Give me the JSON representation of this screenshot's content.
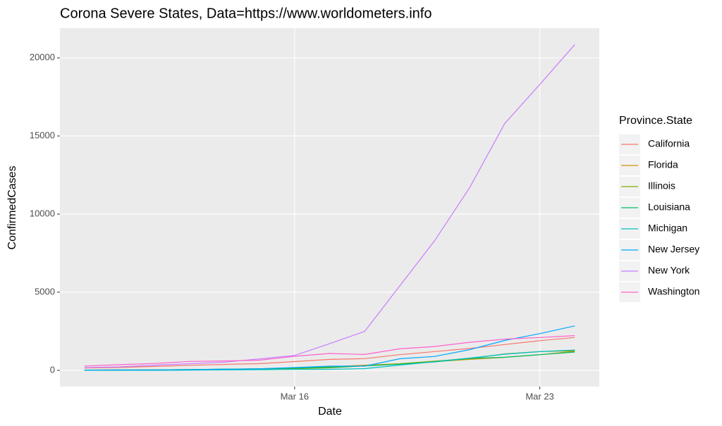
{
  "chart_data": {
    "type": "line",
    "title": "Corona Severe States, Data=https://www.worldometers.info",
    "x_label": "Date",
    "y_label": "ConfirmedCases",
    "legend_title": "Province.State",
    "categories": [
      null,
      null,
      null,
      null,
      null,
      null,
      "Mar 16",
      null,
      null,
      null,
      null,
      null,
      null,
      "Mar 23",
      null
    ],
    "ylim": [
      -1040,
      21900
    ],
    "yticks": [
      0,
      5000,
      10000,
      15000,
      20000
    ],
    "grid": true,
    "legend": "right",
    "series": [
      {
        "name": "California",
        "color": "#F8766D",
        "values": [
          150,
          180,
          250,
          320,
          380,
          430,
          560,
          700,
          750,
          1000,
          1200,
          1400,
          1650,
          1900,
          2100
        ]
      },
      {
        "name": "Florida",
        "color": "#CD9600",
        "values": [
          15,
          23,
          30,
          50,
          77,
          100,
          155,
          216,
          330,
          420,
          560,
          700,
          830,
          1000,
          1220
        ]
      },
      {
        "name": "Illinois",
        "color": "#7CAE00",
        "values": [
          19,
          25,
          32,
          46,
          64,
          93,
          105,
          160,
          288,
          422,
          585,
          753,
          1049,
          1200,
          1250
        ]
      },
      {
        "name": "Louisiana",
        "color": "#00BE67",
        "values": [
          1,
          6,
          19,
          36,
          77,
          91,
          136,
          196,
          280,
          392,
          537,
          763,
          837,
          1000,
          1170
        ]
      },
      {
        "name": "Michigan",
        "color": "#00BFC4",
        "values": [
          2,
          2,
          2,
          12,
          25,
          33,
          54,
          65,
          110,
          336,
          549,
          787,
          1035,
          1200,
          1300
        ]
      },
      {
        "name": "New Jersey",
        "color": "#00A9FF",
        "values": [
          15,
          23,
          29,
          50,
          69,
          98,
          178,
          267,
          267,
          742,
          890,
          1327,
          1914,
          2350,
          2844
        ]
      },
      {
        "name": "New York",
        "color": "#C77CFF",
        "values": [
          173,
          220,
          328,
          421,
          525,
          732,
          950,
          1706,
          2495,
          5400,
          8300,
          11700,
          15800,
          18300,
          20850
        ]
      },
      {
        "name": "Washington",
        "color": "#FF61CC",
        "values": [
          270,
          360,
          440,
          570,
          600,
          650,
          900,
          1076,
          1014,
          1376,
          1524,
          1793,
          1996,
          2100,
          2221
        ]
      }
    ]
  }
}
